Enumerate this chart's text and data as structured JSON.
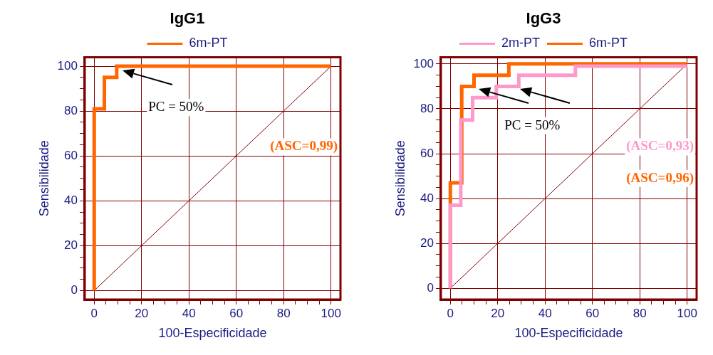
{
  "chart_data": [
    {
      "type": "line",
      "title": "IgG1",
      "xlabel": "100-Especificidade",
      "ylabel": "Sensibilidade",
      "xlim": [
        -4,
        104
      ],
      "ylim": [
        -4,
        104
      ],
      "xticks": [
        0,
        {
          "value": 5,
          "label": null
        },
        {
          "value": 10,
          "label": null
        },
        {
          "value": 15,
          "label": null
        },
        20,
        {
          "value": 25,
          "label": null
        },
        {
          "value": 30,
          "label": null
        },
        {
          "value": 35,
          "label": null
        },
        40,
        {
          "value": 45,
          "label": null
        },
        {
          "value": 50,
          "label": null
        },
        {
          "value": 55,
          "label": null
        },
        60,
        {
          "value": 65,
          "label": null
        },
        {
          "value": 70,
          "label": null
        },
        {
          "value": 75,
          "label": null
        },
        80,
        {
          "value": 85,
          "label": null
        },
        {
          "value": 90,
          "label": null
        },
        {
          "value": 95,
          "label": null
        },
        100
      ],
      "yticks": [
        0,
        {
          "value": 5,
          "label": null
        },
        {
          "value": 10,
          "label": null
        },
        {
          "value": 15,
          "label": null
        },
        20,
        {
          "value": 25,
          "label": null
        },
        {
          "value": 30,
          "label": null
        },
        {
          "value": 35,
          "label": null
        },
        40,
        {
          "value": 45,
          "label": null
        },
        {
          "value": 50,
          "label": null
        },
        {
          "value": 55,
          "label": null
        },
        60,
        {
          "value": 65,
          "label": null
        },
        {
          "value": 70,
          "label": null
        },
        {
          "value": 75,
          "label": null
        },
        80,
        {
          "value": 85,
          "label": null
        },
        {
          "value": 90,
          "label": null
        },
        {
          "value": 95,
          "label": null
        },
        100
      ],
      "grid": true,
      "legend": "top",
      "marker": "none",
      "series": [
        {
          "name": "6m-PT",
          "color": "#ff6600",
          "x": [
            0,
            0,
            4.3,
            4.3,
            9.5,
            9.5,
            100
          ],
          "values": [
            0,
            81,
            81,
            95,
            95,
            100,
            100
          ]
        },
        {
          "type": "line",
          "color": "#800000",
          "x": [
            0,
            100
          ],
          "values": [
            0,
            100
          ]
        }
      ],
      "annotations": [
        "(ASC=0,99)",
        {
          "text": "PC = 50%",
          "x": 12,
          "y": 98
        }
      ]
    },
    {
      "type": "line",
      "title": "IgG3",
      "xlabel": "100-Especificidade",
      "ylabel": "Sensibilidade",
      "xlim": [
        -4,
        104
      ],
      "ylim": [
        -5,
        103
      ],
      "xticks": [
        0,
        {
          "value": 5,
          "label": null
        },
        {
          "value": 10,
          "label": null
        },
        {
          "value": 15,
          "label": null
        },
        20,
        {
          "value": 25,
          "label": null
        },
        {
          "value": 30,
          "label": null
        },
        {
          "value": 35,
          "label": null
        },
        40,
        {
          "value": 45,
          "label": null
        },
        {
          "value": 50,
          "label": null
        },
        {
          "value": 55,
          "label": null
        },
        60,
        {
          "value": 65,
          "label": null
        },
        {
          "value": 70,
          "label": null
        },
        {
          "value": 75,
          "label": null
        },
        80,
        {
          "value": 85,
          "label": null
        },
        {
          "value": 90,
          "label": null
        },
        {
          "value": 95,
          "label": null
        },
        100
      ],
      "yticks": [
        0,
        {
          "value": 5,
          "label": null
        },
        {
          "value": 10,
          "label": null
        },
        {
          "value": 15,
          "label": null
        },
        20,
        {
          "value": 25,
          "label": null
        },
        {
          "value": 30,
          "label": null
        },
        {
          "value": 35,
          "label": null
        },
        40,
        {
          "value": 45,
          "label": null
        },
        {
          "value": 50,
          "label": null
        },
        {
          "value": 55,
          "label": null
        },
        60,
        {
          "value": 65,
          "label": null
        },
        {
          "value": 70,
          "label": null
        },
        {
          "value": 75,
          "label": null
        },
        80,
        {
          "value": 85,
          "label": null
        },
        {
          "value": 90,
          "label": null
        },
        {
          "value": 95,
          "label": null
        },
        100
      ],
      "grid": true,
      "legend": "top",
      "marker": "none",
      "series": [
        {
          "name": "2m-PT",
          "color": "#ff99cc",
          "x": [
            0,
            0,
            4.4,
            4.4,
            9.4,
            9.4,
            19.4,
            19.4,
            28.9,
            28.9,
            52.8,
            52.8,
            100
          ],
          "values": [
            0,
            37,
            37,
            75,
            75,
            85,
            85,
            90,
            90,
            95,
            95,
            99,
            99
          ]
        },
        {
          "name": "6m-PT",
          "color": "#ff6600",
          "x": [
            0,
            0,
            4.8,
            4.8,
            10,
            10,
            24.7,
            24.7,
            100
          ],
          "values": [
            0,
            47,
            47,
            90,
            90,
            95,
            95,
            100,
            100
          ]
        },
        {
          "type": "line",
          "color": "#800000",
          "x": [
            0,
            100
          ],
          "values": [
            0,
            100
          ]
        }
      ],
      "annotations": [
        "(ASC=0,93)",
        "(ASC=0,96)",
        {
          "text": "PC = 50%",
          "x": 12,
          "y": 89
        }
      ]
    }
  ]
}
